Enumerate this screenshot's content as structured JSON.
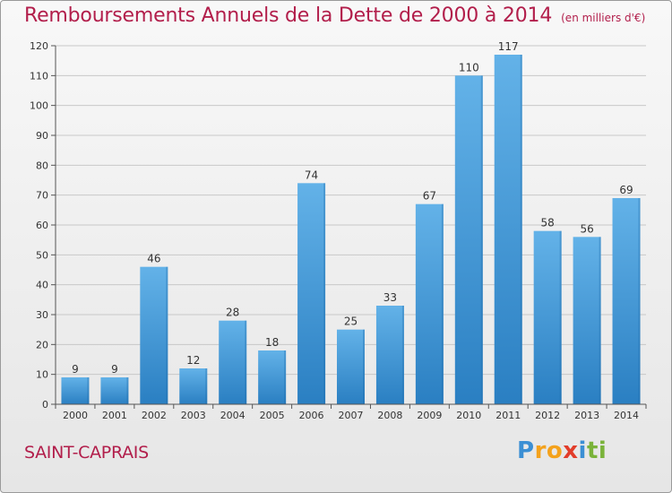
{
  "title": "Remboursements Annuels de la Dette de 2000 à 2014",
  "subtitle": "(en milliers d'€)",
  "city": "SAINT-CAPRAIS",
  "logo": {
    "letters": [
      "P",
      "r",
      "o",
      "x",
      "i",
      "t",
      "i"
    ],
    "colors": [
      "#3b8fd4",
      "#f4a21c",
      "#f4a21c",
      "#e23d2a",
      "#3b8fd4",
      "#7ab33a",
      "#7ab33a"
    ]
  },
  "colors": {
    "accent": "#b21e4b",
    "bar_top": "#63b2e8",
    "bar_bottom": "#2a7fc2",
    "grid": "#c8c8c8",
    "axis": "#555555"
  },
  "chart_data": {
    "type": "bar",
    "categories": [
      "2000",
      "2001",
      "2002",
      "2003",
      "2004",
      "2005",
      "2006",
      "2007",
      "2008",
      "2009",
      "2010",
      "2011",
      "2012",
      "2013",
      "2014"
    ],
    "values": [
      9,
      9,
      46,
      12,
      28,
      18,
      74,
      25,
      33,
      67,
      110,
      117,
      58,
      56,
      69
    ],
    "ylim": [
      0,
      120
    ],
    "yticks": [
      0,
      10,
      20,
      30,
      40,
      50,
      60,
      70,
      80,
      90,
      100,
      110,
      120
    ],
    "grid": true,
    "data_labels": true
  }
}
